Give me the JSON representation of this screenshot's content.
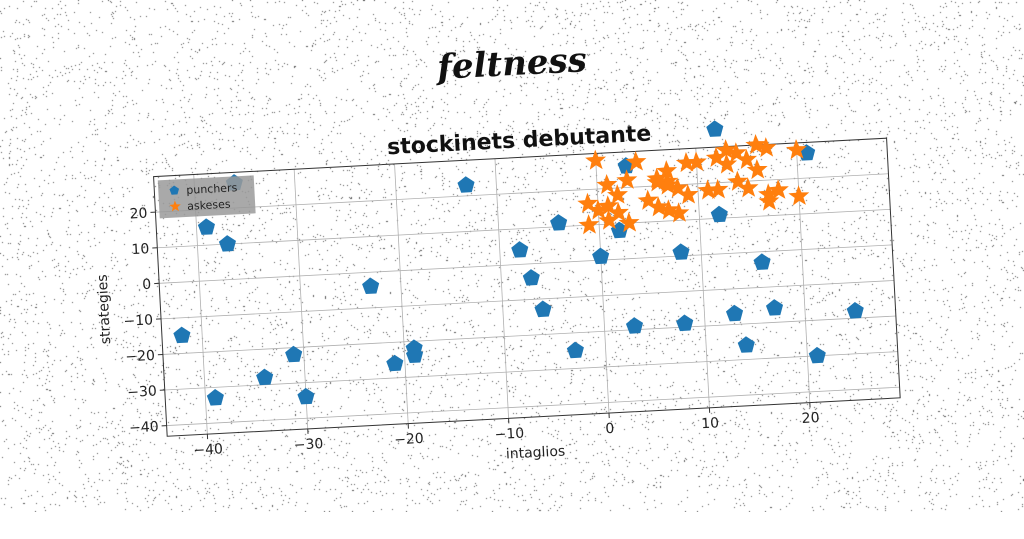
{
  "suptitle": "feltness",
  "chart_data": {
    "type": "scatter",
    "title": "stockinets debutante",
    "xlabel": "intaglios",
    "ylabel": "strategies",
    "xlim": [
      -44,
      29
    ],
    "ylim": [
      -43,
      30
    ],
    "xticks": [
      -40,
      -30,
      -20,
      -10,
      0,
      10,
      20
    ],
    "yticks": [
      -40,
      -30,
      -20,
      -10,
      0,
      10,
      20
    ],
    "grid": true,
    "legend": "top-left",
    "series": [
      {
        "name": "punchers",
        "marker": "pentagon",
        "color": "#1f77b4",
        "points": [
          [
            12,
            35
          ],
          [
            -36,
            27
          ],
          [
            -13,
            23
          ],
          [
            -39,
            15
          ],
          [
            -37,
            10
          ],
          [
            3,
            26
          ],
          [
            21,
            27
          ],
          [
            -4,
            11
          ],
          [
            2,
            8
          ],
          [
            12,
            11
          ],
          [
            -8,
            4
          ],
          [
            0,
            1
          ],
          [
            8,
            1
          ],
          [
            -7,
            -4
          ],
          [
            -23,
            -4
          ],
          [
            -6,
            -13
          ],
          [
            16,
            -3
          ],
          [
            -42,
            -15
          ],
          [
            -31,
            -22
          ],
          [
            -19,
            -22
          ],
          [
            -19,
            -24
          ],
          [
            -34,
            -28
          ],
          [
            -21,
            -26
          ],
          [
            -3,
            -25
          ],
          [
            3,
            -19
          ],
          [
            8,
            -19
          ],
          [
            13,
            -17
          ],
          [
            17,
            -16
          ],
          [
            25,
            -18
          ],
          [
            14,
            -26
          ],
          [
            21,
            -30
          ],
          [
            -30,
            -34
          ],
          [
            -39,
            -33
          ]
        ]
      },
      {
        "name": "askeses",
        "marker": "star",
        "color": "#ff7f0e",
        "points": [
          [
            0,
            28
          ],
          [
            4,
            27
          ],
          [
            7,
            24
          ],
          [
            9,
            26
          ],
          [
            10,
            26
          ],
          [
            13,
            29
          ],
          [
            14,
            28
          ],
          [
            16,
            30
          ],
          [
            17,
            29
          ],
          [
            20,
            28
          ],
          [
            12,
            27
          ],
          [
            13,
            25
          ],
          [
            15,
            26
          ],
          [
            1,
            21
          ],
          [
            3,
            22
          ],
          [
            6,
            22
          ],
          [
            7,
            21
          ],
          [
            8,
            19
          ],
          [
            16,
            23
          ],
          [
            2,
            18
          ],
          [
            9,
            17
          ],
          [
            11,
            18
          ],
          [
            12,
            18
          ],
          [
            14,
            20
          ],
          [
            15,
            18
          ],
          [
            17,
            16
          ],
          [
            18,
            17
          ],
          [
            20,
            15
          ],
          [
            -1,
            16
          ],
          [
            0,
            14
          ],
          [
            1,
            15
          ],
          [
            2,
            13
          ],
          [
            5,
            16
          ],
          [
            6,
            14
          ],
          [
            7,
            13
          ],
          [
            8,
            12
          ],
          [
            1,
            11
          ],
          [
            3,
            10
          ],
          [
            -1,
            10
          ],
          [
            6,
            21
          ],
          [
            17,
            14
          ],
          [
            7,
            20
          ]
        ]
      }
    ]
  }
}
